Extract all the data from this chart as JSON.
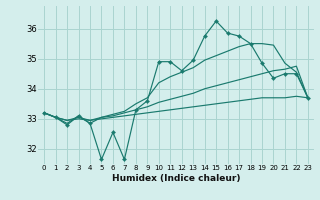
{
  "xlabel": "Humidex (Indice chaleur)",
  "xlim": [
    -0.5,
    23.5
  ],
  "ylim": [
    31.5,
    36.75
  ],
  "yticks": [
    32,
    33,
    34,
    35,
    36
  ],
  "background_color": "#d4eeec",
  "grid_color": "#aad4d0",
  "line_color": "#1a7a6e",
  "line1_y": [
    33.2,
    33.05,
    32.8,
    33.1,
    32.85,
    31.65,
    32.55,
    31.65,
    33.3,
    33.6,
    34.9,
    34.9,
    34.6,
    34.95,
    35.75,
    36.25,
    35.85,
    35.75,
    35.5,
    34.85,
    34.35,
    34.5,
    34.5,
    33.7
  ],
  "line2_y": [
    33.2,
    33.05,
    32.85,
    33.1,
    32.85,
    33.05,
    33.15,
    33.25,
    33.5,
    33.7,
    34.2,
    34.4,
    34.55,
    34.7,
    34.95,
    35.1,
    35.25,
    35.4,
    35.5,
    35.5,
    35.45,
    34.85,
    34.55,
    33.7
  ],
  "line3_y": [
    33.2,
    33.05,
    32.95,
    33.05,
    32.95,
    33.05,
    33.1,
    33.2,
    33.3,
    33.4,
    33.55,
    33.65,
    33.75,
    33.85,
    34.0,
    34.1,
    34.2,
    34.3,
    34.4,
    34.5,
    34.6,
    34.65,
    34.75,
    33.7
  ],
  "line4_y": [
    33.2,
    33.05,
    32.95,
    33.0,
    32.95,
    33.0,
    33.05,
    33.1,
    33.15,
    33.2,
    33.25,
    33.3,
    33.35,
    33.4,
    33.45,
    33.5,
    33.55,
    33.6,
    33.65,
    33.7,
    33.7,
    33.7,
    33.75,
    33.7
  ]
}
